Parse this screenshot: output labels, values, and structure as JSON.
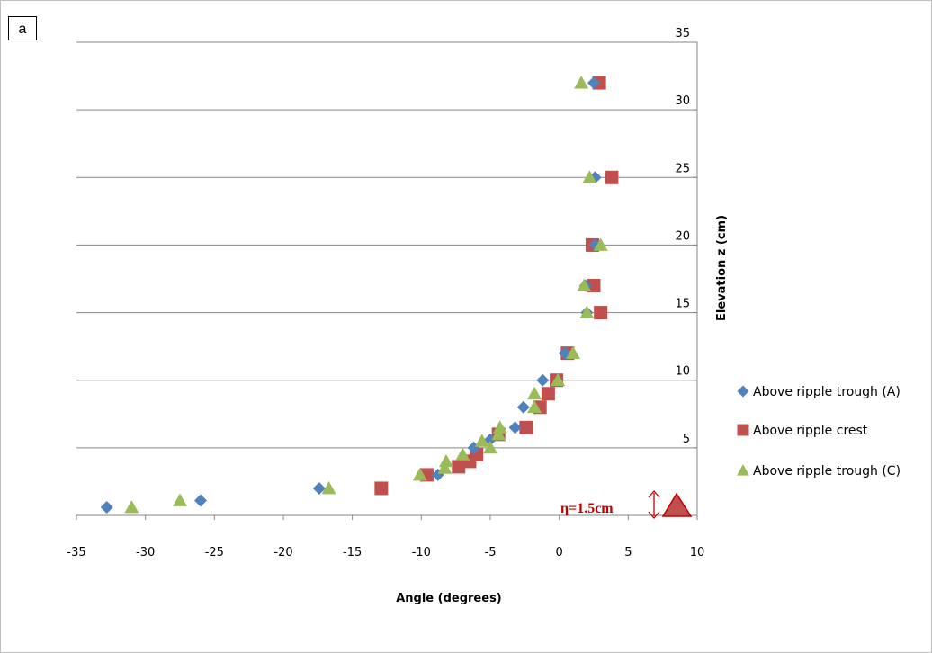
{
  "panel_label": "a",
  "colors": {
    "series_a": "#4f81bd",
    "series_b": "#c0504d",
    "series_c": "#9bbb59",
    "annotation": "#c00000",
    "gridline": "#868686"
  },
  "annotation": {
    "text": "η=1.5cm",
    "arrow_icon": "double-vertical-arrow-icon",
    "marker_icon": "triangle-icon"
  },
  "chart_data": {
    "type": "scatter",
    "xlabel": "Angle (degrees)",
    "ylabel": "Elevation  z  (cm)",
    "xlim": [
      -35,
      10
    ],
    "ylim": [
      0,
      35
    ],
    "xticks": [
      "-35",
      "-30",
      "-25",
      "-20",
      "-15",
      "-10",
      "-5",
      "0",
      "5",
      "10"
    ],
    "yticks": [
      "5",
      "10",
      "15",
      "20",
      "25",
      "30",
      "35"
    ],
    "grid": "horizontal",
    "legend_position": "right",
    "y_axis_position": "right",
    "series": [
      {
        "name": "Above ripple trough (A)",
        "marker": "diamond",
        "points": [
          [
            -32.8,
            0.6
          ],
          [
            -26.0,
            1.1
          ],
          [
            -17.4,
            2.0
          ],
          [
            -8.8,
            3.0
          ],
          [
            -6.2,
            5.0
          ],
          [
            -5.0,
            5.6
          ],
          [
            -3.2,
            6.5
          ],
          [
            -2.6,
            8.0
          ],
          [
            -1.2,
            10.0
          ],
          [
            0.4,
            12.0
          ],
          [
            2.0,
            15.0
          ],
          [
            1.9,
            17.0
          ],
          [
            2.6,
            20.0
          ],
          [
            2.6,
            25.0
          ],
          [
            2.5,
            32.0
          ]
        ]
      },
      {
        "name": "Above ripple crest",
        "marker": "square",
        "points": [
          [
            -12.9,
            2.0
          ],
          [
            -9.6,
            3.0
          ],
          [
            -7.3,
            3.6
          ],
          [
            -6.5,
            4.0
          ],
          [
            -6.0,
            4.5
          ],
          [
            -4.4,
            6.0
          ],
          [
            -2.4,
            6.5
          ],
          [
            -1.4,
            8.0
          ],
          [
            -0.8,
            9.0
          ],
          [
            -0.2,
            10.0
          ],
          [
            0.6,
            12.0
          ],
          [
            3.0,
            15.0
          ],
          [
            2.5,
            17.0
          ],
          [
            2.4,
            20.0
          ],
          [
            3.8,
            25.0
          ],
          [
            2.9,
            32.0
          ]
        ]
      },
      {
        "name": "Above ripple trough (C)",
        "marker": "triangle",
        "points": [
          [
            -31.0,
            0.6
          ],
          [
            -27.5,
            1.1
          ],
          [
            -16.7,
            2.0
          ],
          [
            -10.1,
            3.0
          ],
          [
            -8.3,
            3.5
          ],
          [
            -8.2,
            4.0
          ],
          [
            -7.0,
            4.5
          ],
          [
            -5.6,
            5.5
          ],
          [
            -5.0,
            5.0
          ],
          [
            -4.4,
            6.0
          ],
          [
            -4.3,
            6.5
          ],
          [
            -1.8,
            8.0
          ],
          [
            -1.8,
            9.0
          ],
          [
            -0.1,
            10.0
          ],
          [
            1.0,
            12.0
          ],
          [
            2.0,
            15.0
          ],
          [
            1.8,
            17.0
          ],
          [
            3.0,
            20.0
          ],
          [
            2.2,
            25.0
          ],
          [
            1.6,
            32.0
          ]
        ]
      }
    ]
  }
}
